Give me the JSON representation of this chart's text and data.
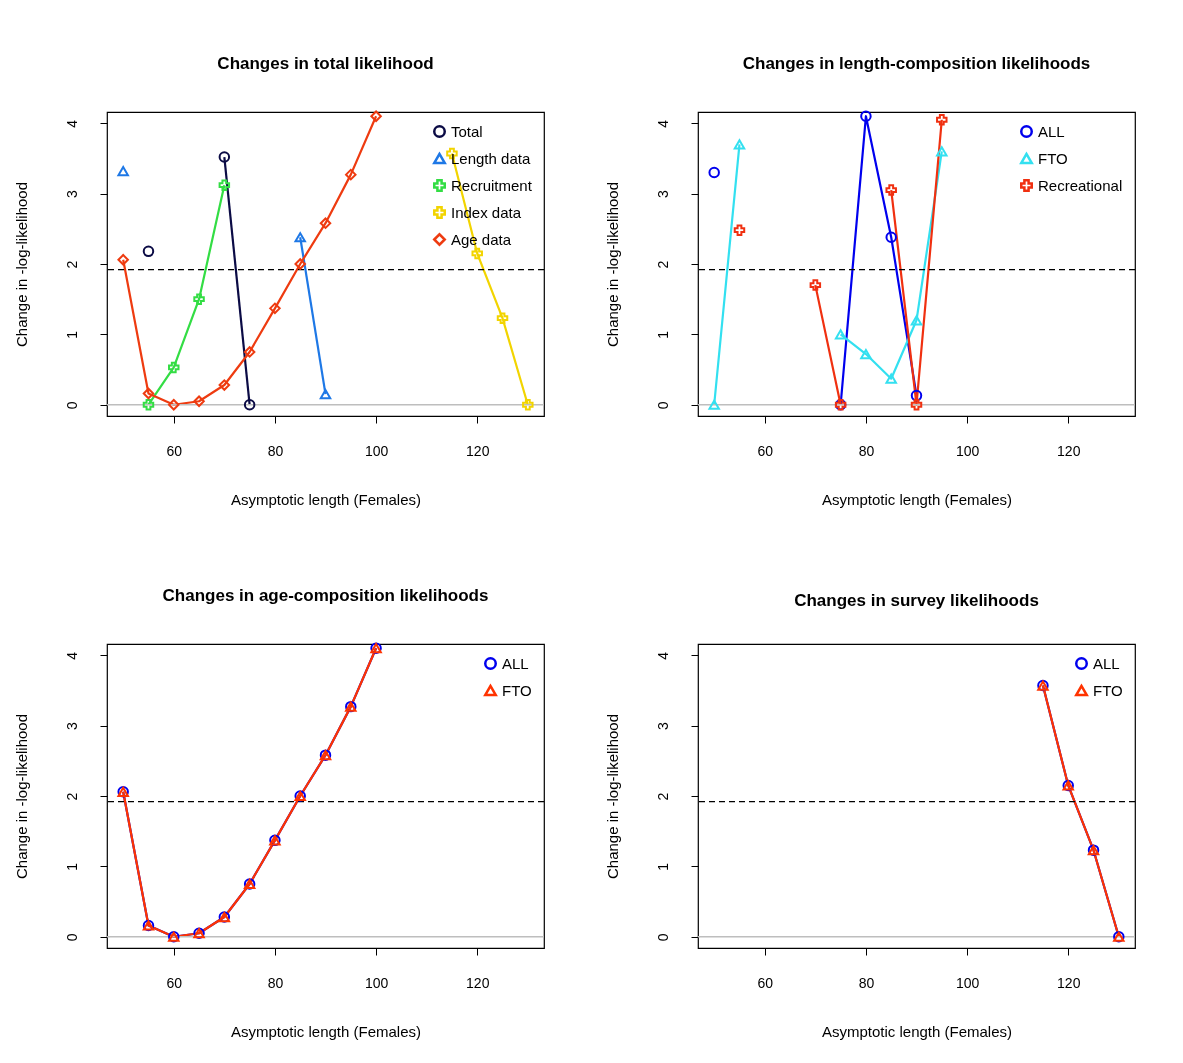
{
  "chart_data": [
    {
      "type": "line",
      "title": "Changes in total likelihood",
      "xlabel": "Asymptotic length (Females)",
      "ylabel": "Change in -log-likelihood",
      "x": [
        50,
        55,
        60,
        65,
        70,
        75,
        80,
        85,
        90,
        95,
        100,
        105,
        110,
        115,
        120,
        125,
        130
      ],
      "xlim": [
        46.8,
        133.2
      ],
      "xticks": [
        60,
        80,
        100,
        120
      ],
      "ylim": [
        -0.16,
        4.16
      ],
      "yticks": [
        0,
        1,
        2,
        3,
        4
      ],
      "grid": false,
      "legend": "top right",
      "series": [
        {
          "name": "Total",
          "color": "#0b0b45",
          "marker": "circle",
          "values": [
            null,
            2.18,
            null,
            null,
            3.52,
            0,
            null,
            null,
            null,
            null,
            null,
            null,
            null,
            null,
            null,
            null,
            null
          ]
        },
        {
          "name": "Length data",
          "color": "#1e78e6",
          "marker": "triangle",
          "values": [
            3.32,
            null,
            null,
            null,
            null,
            null,
            null,
            2.38,
            0.15,
            null,
            null,
            null,
            null,
            null,
            null,
            null,
            null
          ]
        },
        {
          "name": "Recruitment",
          "color": "#33dd44",
          "marker": "cross",
          "values": [
            null,
            0,
            0.53,
            1.5,
            3.12,
            null,
            null,
            null,
            null,
            null,
            null,
            null,
            null,
            null,
            null,
            null,
            null
          ]
        },
        {
          "name": "Index data",
          "color": "#f2d400",
          "marker": "cross",
          "values": [
            null,
            null,
            null,
            null,
            null,
            null,
            null,
            null,
            null,
            null,
            null,
            null,
            null,
            3.57,
            2.15,
            1.23,
            0
          ]
        },
        {
          "name": "Age data",
          "color": "#ee3b10",
          "marker": "diamond",
          "values": [
            2.06,
            0.16,
            0,
            0.05,
            0.28,
            0.75,
            1.37,
            2.0,
            2.58,
            3.27,
            4.1,
            null,
            null,
            null,
            null,
            null,
            null
          ]
        }
      ],
      "ref_lines": [
        {
          "axis": "y",
          "value": 0,
          "color": "#bebebe",
          "line_style": "solid"
        },
        {
          "axis": "y",
          "value": 1.92,
          "color": "#000000",
          "line_style": "dashed"
        }
      ]
    },
    {
      "type": "line",
      "title": "Changes in length-composition likelihoods",
      "xlabel": "Asymptotic length (Females)",
      "ylabel": "Change in -log-likelihood",
      "x": [
        50,
        55,
        60,
        65,
        70,
        75,
        80,
        85,
        90,
        95
      ],
      "xlim": [
        46.8,
        133.2
      ],
      "xticks": [
        60,
        80,
        100,
        120
      ],
      "ylim": [
        -0.16,
        4.16
      ],
      "yticks": [
        0,
        1,
        2,
        3,
        4
      ],
      "grid": false,
      "legend": "top right",
      "series": [
        {
          "name": "ALL",
          "color": "#0000ee",
          "marker": "circle",
          "values": [
            3.3,
            null,
            null,
            null,
            null,
            0,
            4.1,
            2.38,
            0.13,
            null
          ]
        },
        {
          "name": "FTO",
          "color": "#33e0f0",
          "marker": "triangle",
          "values": [
            0,
            3.7,
            null,
            null,
            null,
            1.0,
            0.72,
            0.37,
            1.2,
            3.6
          ]
        },
        {
          "name": "Recreational",
          "color": "#f03010",
          "marker": "cross",
          "values": [
            null,
            2.48,
            null,
            null,
            1.7,
            0,
            null,
            3.05,
            0,
            4.05
          ]
        }
      ],
      "ref_lines": [
        {
          "axis": "y",
          "value": 0,
          "color": "#bebebe",
          "line_style": "solid"
        },
        {
          "axis": "y",
          "value": 1.92,
          "color": "#000000",
          "line_style": "dashed"
        }
      ]
    },
    {
      "type": "line",
      "title": "Changes in age-composition likelihoods",
      "xlabel": "Asymptotic length (Females)",
      "ylabel": "Change in -log-likelihood",
      "x": [
        50,
        55,
        60,
        65,
        70,
        75,
        80,
        85,
        90,
        95,
        100
      ],
      "xlim": [
        46.8,
        133.2
      ],
      "xticks": [
        60,
        80,
        100,
        120
      ],
      "ylim": [
        -0.16,
        4.16
      ],
      "yticks": [
        0,
        1,
        2,
        3,
        4
      ],
      "grid": false,
      "legend": "top right",
      "series": [
        {
          "name": "ALL",
          "color": "#0000ee",
          "marker": "circle",
          "values": [
            2.06,
            0.16,
            0,
            0.05,
            0.28,
            0.75,
            1.37,
            2.0,
            2.58,
            3.27,
            4.1
          ]
        },
        {
          "name": "FTO",
          "color": "#ff3300",
          "marker": "triangle",
          "values": [
            2.06,
            0.16,
            0,
            0.05,
            0.28,
            0.75,
            1.37,
            2.0,
            2.58,
            3.27,
            4.1
          ]
        }
      ],
      "ref_lines": [
        {
          "axis": "y",
          "value": 0,
          "color": "#bebebe",
          "line_style": "solid"
        },
        {
          "axis": "y",
          "value": 1.92,
          "color": "#000000",
          "line_style": "dashed"
        }
      ]
    },
    {
      "type": "line",
      "title": "Changes in survey likelihoods",
      "xlabel": "Asymptotic length (Females)",
      "ylabel": "Change in -log-likelihood",
      "x": [
        115,
        120,
        125,
        130
      ],
      "xlim": [
        46.8,
        133.2
      ],
      "xticks": [
        60,
        80,
        100,
        120
      ],
      "ylim": [
        -0.16,
        4.16
      ],
      "yticks": [
        0,
        1,
        2,
        3,
        4
      ],
      "grid": false,
      "legend": "top right",
      "series": [
        {
          "name": "ALL",
          "color": "#0000ee",
          "marker": "circle",
          "values": [
            3.57,
            2.15,
            1.23,
            0
          ]
        },
        {
          "name": "FTO",
          "color": "#ff3300",
          "marker": "triangle",
          "values": [
            3.57,
            2.15,
            1.23,
            0
          ]
        }
      ],
      "ref_lines": [
        {
          "axis": "y",
          "value": 0,
          "color": "#bebebe",
          "line_style": "solid"
        },
        {
          "axis": "y",
          "value": 1.92,
          "color": "#000000",
          "line_style": "dashed"
        }
      ]
    }
  ]
}
